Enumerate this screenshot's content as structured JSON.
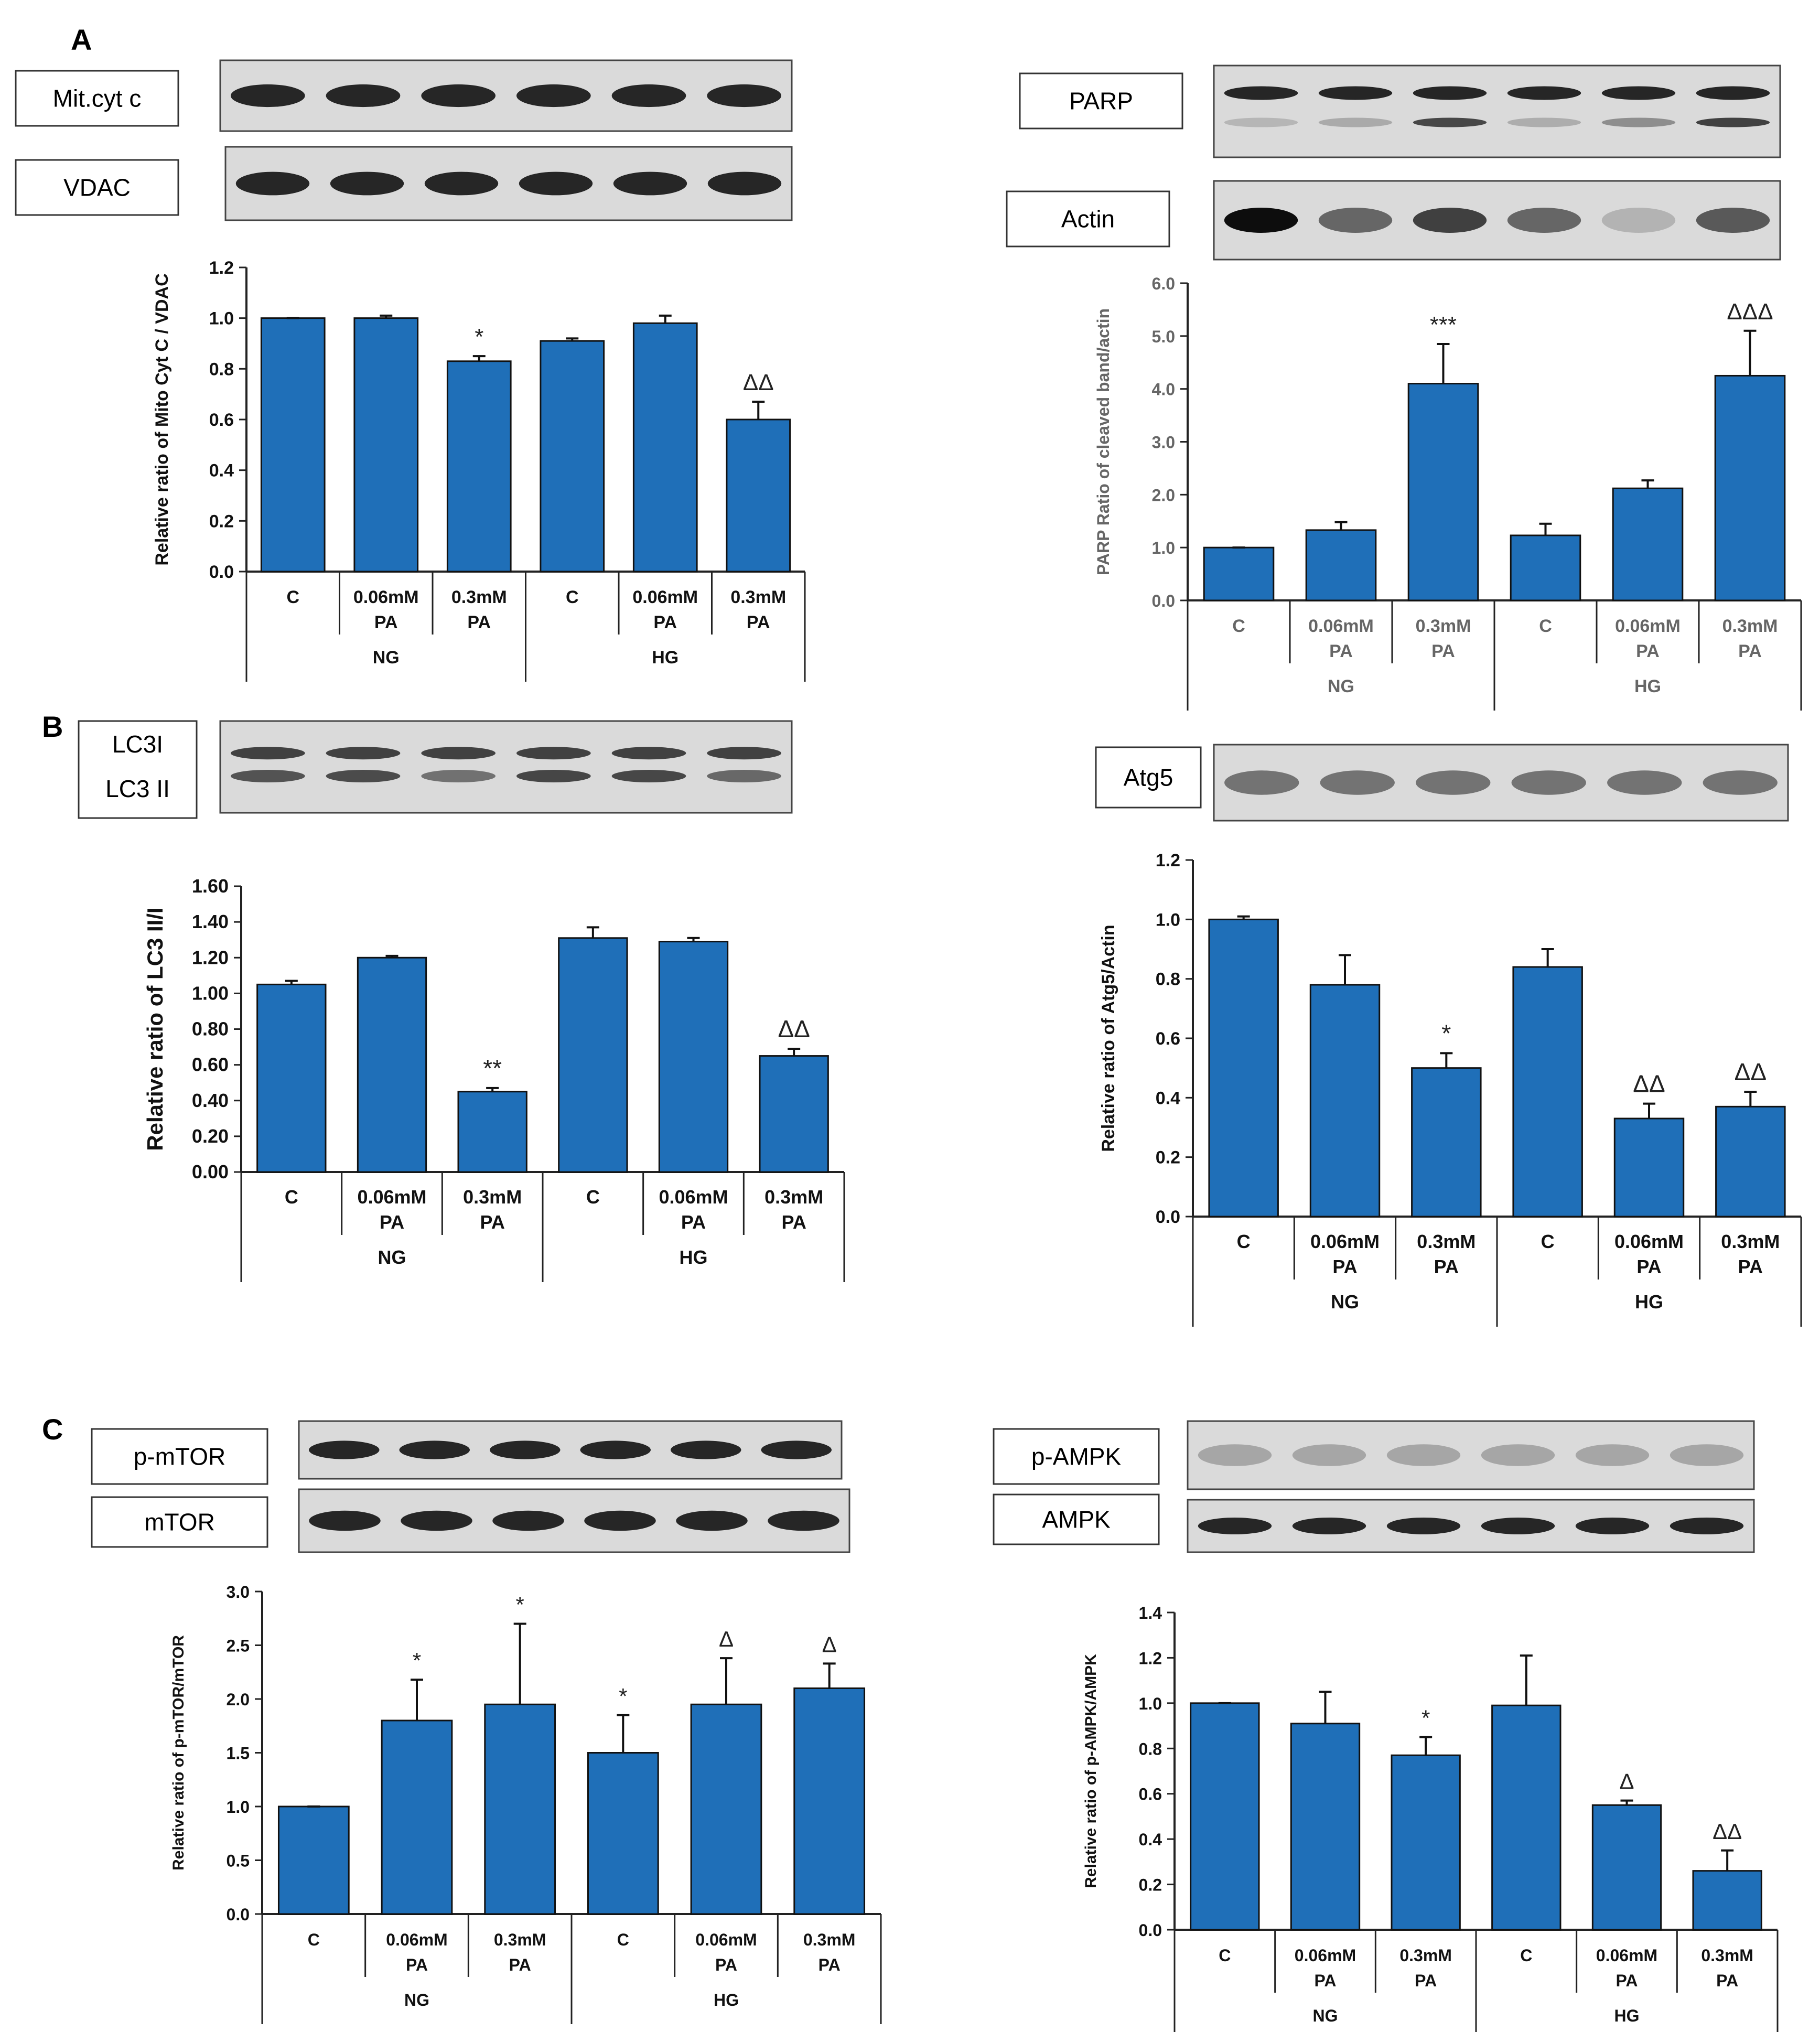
{
  "panels": [
    {
      "letter": "A"
    },
    {
      "letter": "B"
    },
    {
      "letter": "C"
    }
  ],
  "chart_data": [
    {
      "type": "bar",
      "panel": "A",
      "blot_labels": [
        "Mit.cyt c",
        "VDAC"
      ],
      "ylabel": "Relative ratio of Mito Cyt C / VDAC",
      "ylim": [
        0,
        1.2
      ],
      "yticks": [
        "0.0",
        "0.2",
        "0.4",
        "0.6",
        "0.8",
        "1.0",
        "1.2"
      ],
      "categories": [
        "C",
        "0.06mM PA",
        "0.3mM PA",
        "C",
        "0.06mM PA",
        "0.3mM PA"
      ],
      "groups": [
        "NG",
        "HG"
      ],
      "values": [
        1.0,
        1.0,
        0.83,
        0.91,
        0.98,
        0.6
      ],
      "errors": [
        0.0,
        0.01,
        0.02,
        0.01,
        0.03,
        0.07
      ],
      "annotations": [
        "",
        "",
        "*",
        "",
        "",
        "ΔΔ"
      ],
      "color": "#1f6fb8"
    },
    {
      "type": "bar",
      "panel": "A",
      "blot_labels": [
        "PARP",
        "Actin"
      ],
      "ylabel": "PARP Ratio of cleaved band/actin",
      "ylim": [
        0,
        6.0
      ],
      "yticks": [
        "0.0",
        "1.0",
        "2.0",
        "3.0",
        "4.0",
        "5.0",
        "6.0"
      ],
      "categories": [
        "C",
        "0.06mM PA",
        "0.3mM PA",
        "C",
        "0.06mM PA",
        "0.3mM PA"
      ],
      "groups": [
        "NG",
        "HG"
      ],
      "values": [
        1.0,
        1.33,
        4.1,
        1.23,
        2.12,
        4.25
      ],
      "errors": [
        0.0,
        0.15,
        0.75,
        0.22,
        0.15,
        0.85
      ],
      "annotations": [
        "",
        "",
        "***",
        "",
        "",
        "ΔΔΔ"
      ],
      "color": "#1f6fb8"
    },
    {
      "type": "bar",
      "panel": "B",
      "blot_labels": [
        "LC3I",
        "LC3 II"
      ],
      "ylabel": "Relative ratio of LC3 II/I",
      "ylim": [
        0,
        1.6
      ],
      "yticks": [
        "0.00",
        "0.20",
        "0.40",
        "0.60",
        "0.80",
        "1.00",
        "1.20",
        "1.40",
        "1.60"
      ],
      "categories": [
        "C",
        "0.06mM PA",
        "0.3mM PA",
        "C",
        "0.06mM PA",
        "0.3mM PA"
      ],
      "groups": [
        "NG",
        "HG"
      ],
      "values": [
        1.05,
        1.2,
        0.45,
        1.31,
        1.29,
        0.65
      ],
      "errors": [
        0.02,
        0.01,
        0.02,
        0.06,
        0.02,
        0.04
      ],
      "annotations": [
        "",
        "",
        "**",
        "",
        "",
        "ΔΔ"
      ],
      "color": "#1f6fb8"
    },
    {
      "type": "bar",
      "panel": "B",
      "blot_labels": [
        "Atg5"
      ],
      "ylabel": "Relative ratio of Atg5/Actin",
      "ylim": [
        0,
        1.2
      ],
      "yticks": [
        "0.0",
        "0.2",
        "0.4",
        "0.6",
        "0.8",
        "1.0",
        "1.2"
      ],
      "categories": [
        "C",
        "0.06mM PA",
        "0.3mM PA",
        "C",
        "0.06mM PA",
        "0.3mM PA"
      ],
      "groups": [
        "NG",
        "HG"
      ],
      "values": [
        1.0,
        0.78,
        0.5,
        0.84,
        0.33,
        0.37
      ],
      "errors": [
        0.01,
        0.1,
        0.05,
        0.06,
        0.05,
        0.05
      ],
      "annotations": [
        "",
        "",
        "*",
        "",
        "ΔΔ",
        "ΔΔ"
      ],
      "color": "#1f6fb8"
    },
    {
      "type": "bar",
      "panel": "C",
      "blot_labels": [
        "p-mTOR",
        "mTOR"
      ],
      "ylabel": "Relative ratio of p-mTOR/mTOR",
      "ylim": [
        0,
        3.0
      ],
      "yticks": [
        "0.0",
        "0.5",
        "1.0",
        "1.5",
        "2.0",
        "2.5",
        "3.0"
      ],
      "categories": [
        "C",
        "0.06mM PA",
        "0.3mM PA",
        "C",
        "0.06mM PA",
        "0.3mM PA"
      ],
      "groups": [
        "NG",
        "HG"
      ],
      "values": [
        1.0,
        1.8,
        1.95,
        1.5,
        1.95,
        2.1
      ],
      "errors": [
        0.0,
        0.38,
        0.75,
        0.35,
        0.43,
        0.23
      ],
      "annotations": [
        "",
        "*",
        "*",
        "*",
        "Δ",
        "Δ"
      ],
      "color": "#1f6fb8"
    },
    {
      "type": "bar",
      "panel": "C",
      "blot_labels": [
        "p-AMPK",
        "AMPK"
      ],
      "ylabel": "Relative ratio of p-AMPK/AMPK",
      "ylim": [
        0,
        1.4
      ],
      "yticks": [
        "0.0",
        "0.2",
        "0.4",
        "0.6",
        "0.8",
        "1.0",
        "1.2",
        "1.4"
      ],
      "categories": [
        "C",
        "0.06mM PA",
        "0.3mM PA",
        "C",
        "0.06mM PA",
        "0.3mM PA"
      ],
      "groups": [
        "NG",
        "HG"
      ],
      "values": [
        1.0,
        0.91,
        0.77,
        0.99,
        0.55,
        0.26
      ],
      "errors": [
        0.0,
        0.14,
        0.08,
        0.22,
        0.02,
        0.09
      ],
      "annotations": [
        "",
        "",
        "*",
        "",
        "Δ",
        "ΔΔ"
      ],
      "color": "#1f6fb8"
    }
  ]
}
